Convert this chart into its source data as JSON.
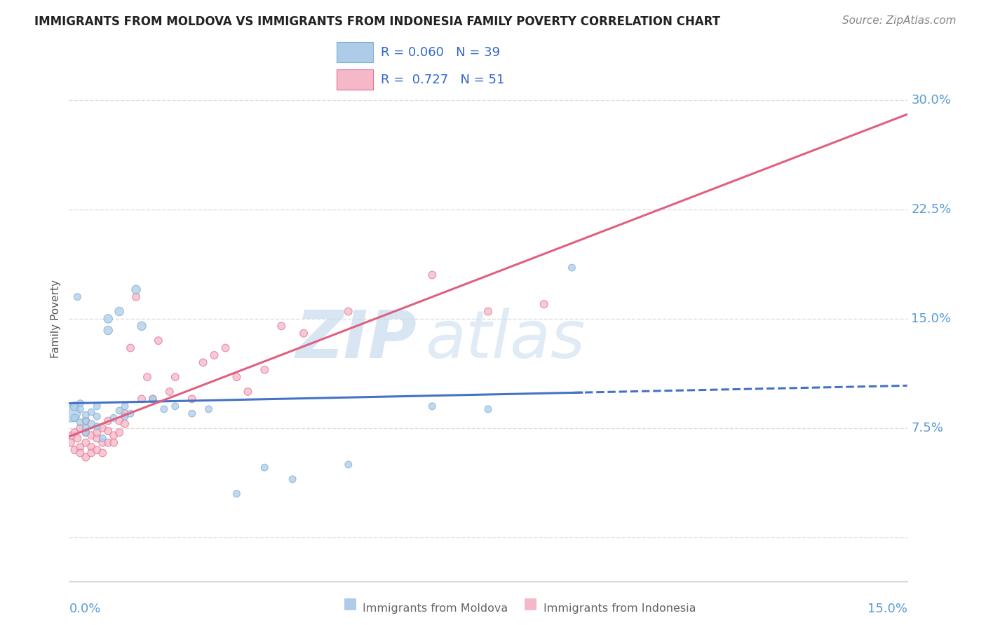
{
  "title": "IMMIGRANTS FROM MOLDOVA VS IMMIGRANTS FROM INDONESIA FAMILY POVERTY CORRELATION CHART",
  "source": "Source: ZipAtlas.com",
  "ylabel": "Family Poverty",
  "xmin": 0.0,
  "xmax": 0.15,
  "ymin": -0.03,
  "ymax": 0.33,
  "ytick_vals": [
    0.0,
    0.075,
    0.15,
    0.225,
    0.3
  ],
  "ytick_labels": [
    "",
    "7.5%",
    "15.0%",
    "22.5%",
    "30.0%"
  ],
  "moldova_color": "#AECCE8",
  "moldova_edge_color": "#7BAFD4",
  "indonesia_color": "#F5B8C8",
  "indonesia_edge_color": "#E07090",
  "moldova_line_color": "#4472C4",
  "indonesia_line_color": "#E06080",
  "moldova_R": 0.06,
  "moldova_N": 39,
  "indonesia_R": 0.727,
  "indonesia_N": 51,
  "moldova_scatter_x": [
    0.0005,
    0.001,
    0.001,
    0.0015,
    0.002,
    0.002,
    0.002,
    0.003,
    0.003,
    0.003,
    0.003,
    0.004,
    0.004,
    0.005,
    0.005,
    0.005,
    0.006,
    0.007,
    0.007,
    0.008,
    0.009,
    0.009,
    0.01,
    0.01,
    0.011,
    0.012,
    0.013,
    0.015,
    0.017,
    0.019,
    0.022,
    0.025,
    0.03,
    0.035,
    0.04,
    0.05,
    0.065,
    0.075,
    0.09
  ],
  "moldova_scatter_y": [
    0.085,
    0.09,
    0.082,
    0.165,
    0.088,
    0.079,
    0.092,
    0.072,
    0.08,
    0.084,
    0.075,
    0.086,
    0.078,
    0.083,
    0.076,
    0.09,
    0.068,
    0.15,
    0.142,
    0.082,
    0.155,
    0.087,
    0.083,
    0.09,
    0.085,
    0.17,
    0.145,
    0.095,
    0.088,
    0.09,
    0.085,
    0.088,
    0.03,
    0.048,
    0.04,
    0.05,
    0.09,
    0.088,
    0.185
  ],
  "moldova_scatter_sizes": [
    300,
    80,
    60,
    50,
    50,
    50,
    50,
    50,
    50,
    50,
    50,
    50,
    50,
    50,
    50,
    50,
    50,
    80,
    80,
    50,
    80,
    50,
    50,
    50,
    50,
    80,
    80,
    50,
    50,
    50,
    50,
    50,
    50,
    50,
    50,
    50,
    50,
    50,
    50
  ],
  "indonesia_scatter_x": [
    0.0003,
    0.0005,
    0.001,
    0.001,
    0.0015,
    0.002,
    0.002,
    0.002,
    0.003,
    0.003,
    0.003,
    0.003,
    0.004,
    0.004,
    0.004,
    0.005,
    0.005,
    0.005,
    0.006,
    0.006,
    0.006,
    0.007,
    0.007,
    0.007,
    0.008,
    0.008,
    0.009,
    0.009,
    0.01,
    0.01,
    0.011,
    0.012,
    0.013,
    0.014,
    0.015,
    0.016,
    0.018,
    0.019,
    0.022,
    0.024,
    0.026,
    0.028,
    0.03,
    0.032,
    0.035,
    0.038,
    0.042,
    0.05,
    0.065,
    0.075,
    0.085
  ],
  "indonesia_scatter_y": [
    0.065,
    0.07,
    0.06,
    0.072,
    0.068,
    0.062,
    0.075,
    0.058,
    0.065,
    0.072,
    0.055,
    0.08,
    0.07,
    0.062,
    0.058,
    0.068,
    0.072,
    0.06,
    0.075,
    0.065,
    0.058,
    0.08,
    0.065,
    0.073,
    0.07,
    0.065,
    0.08,
    0.072,
    0.078,
    0.085,
    0.13,
    0.165,
    0.095,
    0.11,
    0.095,
    0.135,
    0.1,
    0.11,
    0.095,
    0.12,
    0.125,
    0.13,
    0.11,
    0.1,
    0.115,
    0.145,
    0.14,
    0.155,
    0.18,
    0.155,
    0.16
  ],
  "indonesia_scatter_sizes": [
    60,
    60,
    60,
    60,
    60,
    60,
    60,
    60,
    60,
    60,
    60,
    60,
    60,
    60,
    60,
    60,
    60,
    60,
    60,
    60,
    60,
    60,
    60,
    60,
    60,
    60,
    60,
    60,
    60,
    60,
    60,
    60,
    60,
    60,
    60,
    60,
    60,
    60,
    60,
    60,
    60,
    60,
    60,
    60,
    60,
    60,
    60,
    60,
    60,
    60,
    60
  ],
  "axis_label_color": "#5B9BD5",
  "axis_label_fontsize": 13,
  "grid_color": "#DDDDDD",
  "title_fontsize": 12,
  "title_color": "#222222",
  "source_color": "#888888",
  "source_fontsize": 11,
  "ylabel_fontsize": 11,
  "ylabel_color": "#555555",
  "legend_fontsize": 13,
  "legend_R_color": "#3366CC",
  "watermark_zip_color": "#C8DCEE",
  "watermark_atlas_color": "#C8DCEE",
  "background_color": "#FFFFFF"
}
